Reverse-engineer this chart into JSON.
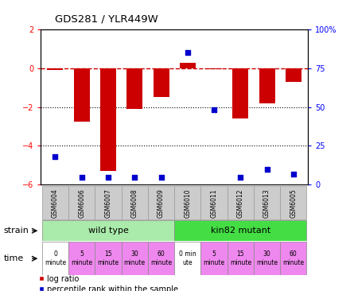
{
  "title": "GDS281 / YLR449W",
  "samples": [
    "GSM6004",
    "GSM6006",
    "GSM6007",
    "GSM6008",
    "GSM6009",
    "GSM6010",
    "GSM6011",
    "GSM6012",
    "GSM6013",
    "GSM6005"
  ],
  "log_ratio": [
    -0.1,
    -2.75,
    -5.3,
    -2.1,
    -1.5,
    0.28,
    -0.05,
    -2.6,
    -1.8,
    -0.7
  ],
  "percentile": [
    18,
    5,
    5,
    5,
    5,
    85,
    48,
    5,
    10,
    7
  ],
  "ylim_left": [
    -6,
    2
  ],
  "ylim_right": [
    0,
    100
  ],
  "yticks_left": [
    -6,
    -4,
    -2,
    0,
    2
  ],
  "yticks_right": [
    0,
    25,
    50,
    75,
    100
  ],
  "bar_color": "#cc0000",
  "pct_color": "#0000cc",
  "dashed_line_color": "#cc0000",
  "grid_color": "#000000",
  "strain_wt_color": "#aaeaaa",
  "strain_mut_color": "#44dd44",
  "time_colors": [
    "#ffffff",
    "#ee88ee",
    "#ee88ee",
    "#ee88ee",
    "#ee88ee",
    "#ffffff",
    "#ee88ee",
    "#ee88ee",
    "#ee88ee",
    "#ee88ee"
  ],
  "strain_labels": [
    "wild type",
    "kin82 mutant"
  ],
  "time_labels": [
    "0\nminute",
    "5\nminute",
    "15\nminute",
    "30\nminute",
    "60\nminute",
    "0 min\nute",
    "5\nminute",
    "15\nminute",
    "30\nminute",
    "60\nminute"
  ],
  "sample_bg_color": "#cccccc",
  "sample_border_color": "#999999",
  "bar_width": 0.6
}
